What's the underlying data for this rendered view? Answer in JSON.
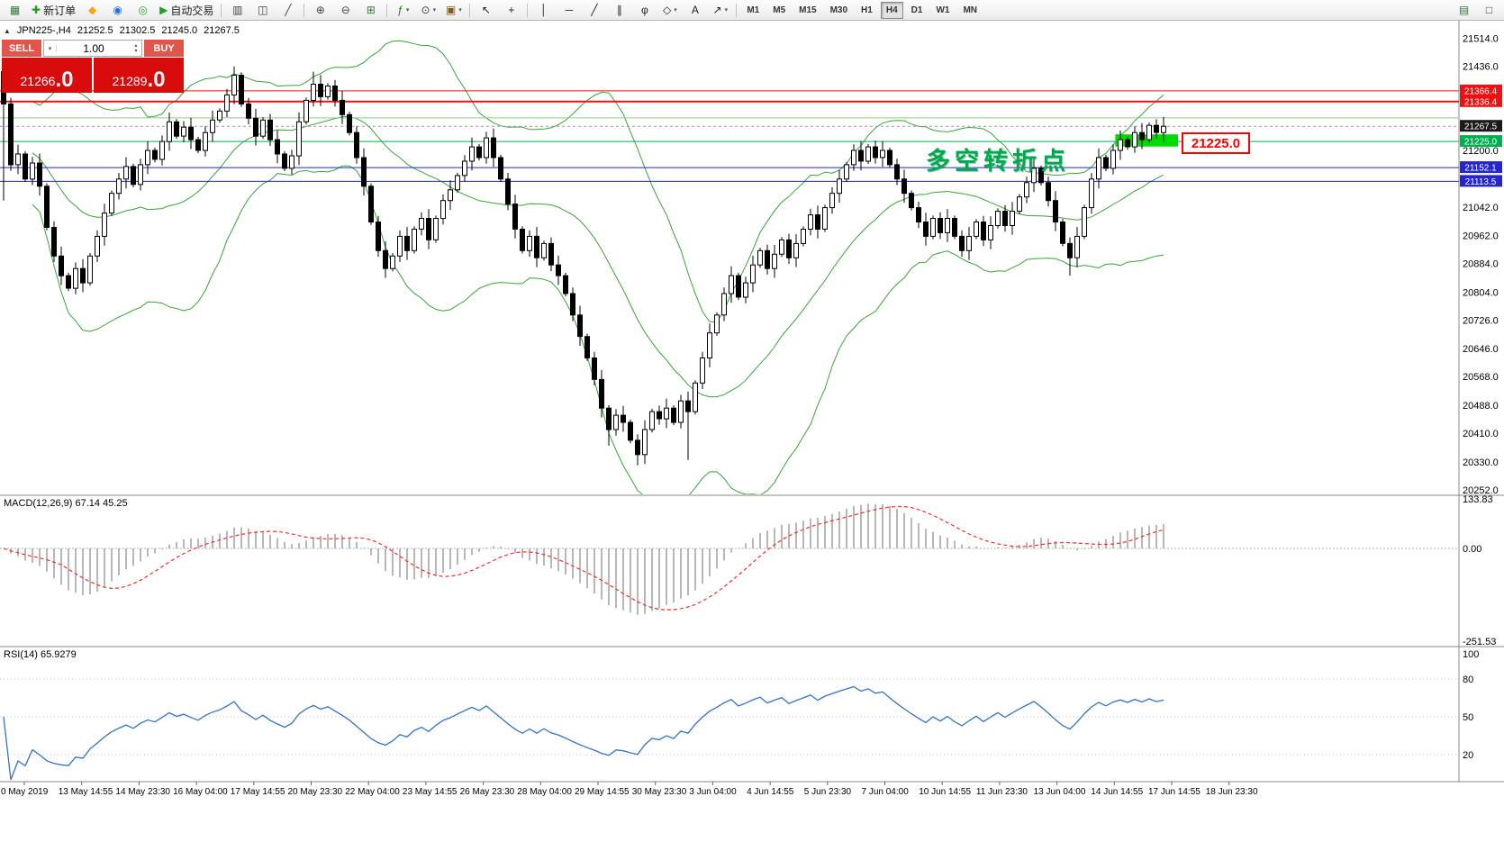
{
  "icons": {
    "caret_down": "▾",
    "caret_up": "▴",
    "collapse": "▲"
  },
  "toolbar": {
    "items": [
      {
        "name": "chart-window-button",
        "icon": "chart-window-icon",
        "glyph": "▦",
        "color": "#2e7d32"
      },
      {
        "name": "new-order-button",
        "icon": "new-order-icon",
        "glyph": "✚",
        "color": "#1f9d1f",
        "label": "新订单"
      },
      {
        "name": "mql5-button",
        "icon": "mql5-icon",
        "glyph": "◆",
        "color": "#f2a71b"
      },
      {
        "name": "market-button",
        "icon": "market-icon",
        "glyph": "◉",
        "color": "#2f6fd0"
      },
      {
        "name": "signals-button",
        "icon": "signals-icon",
        "glyph": "◎",
        "color": "#31a331"
      },
      {
        "name": "autotrading-button",
        "icon": "autotrading-icon",
        "glyph": "▶",
        "color": "#17a817",
        "label": "自动交易"
      },
      {
        "sep": true
      },
      {
        "name": "bar-chart-button",
        "icon": "bar-chart-icon",
        "glyph": "▥",
        "color": "#444444"
      },
      {
        "name": "candlestick-button",
        "icon": "candlestick-icon",
        "glyph": "◫",
        "color": "#444444"
      },
      {
        "name": "line-chart-button",
        "icon": "line-chart-icon",
        "glyph": "╱",
        "color": "#444444"
      },
      {
        "sep": true
      },
      {
        "name": "zoom-in-button",
        "icon": "zoom-in-icon",
        "glyph": "⊕",
        "color": "#444444"
      },
      {
        "name": "zoom-out-button",
        "icon": "zoom-out-icon",
        "glyph": "⊖",
        "color": "#444444"
      },
      {
        "name": "tile-windows-button",
        "icon": "tile-windows-icon",
        "glyph": "⊞",
        "color": "#2e7d32"
      },
      {
        "sep": true
      },
      {
        "name": "indicators-button",
        "icon": "indicators-icon",
        "glyph": "ƒ",
        "color": "#1f7d1f",
        "caret": true
      },
      {
        "name": "periods-button",
        "icon": "periods-icon",
        "glyph": "⊙",
        "color": "#444444",
        "caret": true
      },
      {
        "name": "templates-button",
        "icon": "templates-icon",
        "glyph": "▣",
        "color": "#7d5a1f",
        "caret": true
      },
      {
        "sep": true
      },
      {
        "name": "cursor-button",
        "icon": "cursor-icon",
        "glyph": "↖",
        "color": "#222222"
      },
      {
        "name": "crosshair-button",
        "icon": "crosshair-icon",
        "glyph": "+",
        "color": "#222222"
      },
      {
        "sep": true
      },
      {
        "name": "vertical-line-button",
        "icon": "vertical-line-icon",
        "glyph": "│",
        "color": "#222222"
      },
      {
        "name": "horizontal-line-button",
        "icon": "horizontal-line-icon",
        "glyph": "─",
        "color": "#222222"
      },
      {
        "name": "trendline-button",
        "icon": "trendline-icon",
        "glyph": "╱",
        "color": "#222222"
      },
      {
        "name": "channel-button",
        "icon": "channel-icon",
        "glyph": "∥",
        "color": "#222222"
      },
      {
        "name": "fibonacci-button",
        "icon": "fibonacci-icon",
        "glyph": "φ",
        "color": "#222222"
      },
      {
        "name": "shapes-button",
        "icon": "shapes-icon",
        "glyph": "◇",
        "color": "#222222",
        "caret": true
      },
      {
        "name": "text-button",
        "icon": "text-icon",
        "glyph": "A",
        "color": "#222222"
      },
      {
        "name": "arrows-button",
        "icon": "arrows-icon",
        "glyph": "↗",
        "color": "#222222",
        "caret": true
      },
      {
        "sep": true
      },
      {
        "timeframes": true
      },
      {
        "spacer": true
      },
      {
        "name": "chart-list-button",
        "icon": "chart-list-icon",
        "glyph": "▤",
        "color": "#2e7d32"
      },
      {
        "name": "window-mode-button",
        "icon": "window-mode-icon",
        "glyph": "□",
        "color": "#444444"
      }
    ],
    "timeframes": [
      "M1",
      "M5",
      "M15",
      "M30",
      "H1",
      "H4",
      "D1",
      "W1",
      "MN"
    ],
    "active_timeframe": "H4"
  },
  "chart_header": {
    "symbol": "JPN225-,H4",
    "open": "21252.5",
    "high": "21302.5",
    "low": "21245.0",
    "close": "21267.5"
  },
  "trade_panel": {
    "sell_label": "SELL",
    "buy_label": "BUY",
    "volume": "1.00",
    "sell_price_main": "21266",
    "sell_price_pips": ".0",
    "buy_price_main": "21289",
    "buy_price_pips": ".0"
  },
  "indicator_labels": {
    "macd": "MACD(12,26,9) 67.14 45.25",
    "rsi": "RSI(14) 65.9279"
  },
  "annotations": {
    "turning_point_text": "多空转折点",
    "price_tag": "21225.0"
  },
  "chart_data": {
    "type": "candlestick",
    "symbol": "JPN225-",
    "timeframe": "H4",
    "ohlc_display": {
      "open": 21252.5,
      "high": 21302.5,
      "low": 21245.0,
      "close": 21267.5
    },
    "price_axis_labels": [
      21514.0,
      21436.0,
      21200.0,
      21042.0,
      20962.0,
      20884.0,
      20804.0,
      20726.0,
      20646.0,
      20568.0,
      20488.0,
      20410.0,
      20330.0,
      20252.0
    ],
    "current_price": {
      "value": 21267.5,
      "label": "21267.5",
      "tag_color": "#1a1a1a"
    },
    "hlines": [
      {
        "price": 21366.4,
        "label": "21366.4",
        "color": "#ee1111",
        "width": 1
      },
      {
        "price": 21336.4,
        "label": "21336.4",
        "color": "#ee1111",
        "width": 2
      },
      {
        "price": 21291.0,
        "label": null,
        "color": "#8fcf8f",
        "width": 1
      },
      {
        "price": 21225.0,
        "label": "21225.0",
        "color": "#00b050",
        "width": 1
      },
      {
        "price": 21152.1,
        "label": "21152.1",
        "color": "#2525cd",
        "width": 1
      },
      {
        "price": 21113.5,
        "label": "21113.5",
        "color": "#2525cd",
        "width": 1
      }
    ],
    "zone": {
      "left_index": 154.3,
      "right_index": 163,
      "top_price": 21245,
      "bottom_price": 21211,
      "color": "#00dc00"
    },
    "candles": {
      "first_open": 21420,
      "closes": [
        21330,
        21160,
        21190,
        21120,
        21165,
        21100,
        20985,
        20905,
        20850,
        20815,
        20870,
        20830,
        20905,
        20960,
        21025,
        21080,
        21120,
        21155,
        21105,
        21160,
        21200,
        21175,
        21225,
        21280,
        21240,
        21265,
        21230,
        21200,
        21250,
        21285,
        21310,
        21355,
        21410,
        21330,
        21290,
        21240,
        21285,
        21230,
        21190,
        21150,
        21185,
        21280,
        21340,
        21385,
        21350,
        21380,
        21340,
        21300,
        21250,
        21180,
        21100,
        21000,
        20920,
        20870,
        20905,
        20960,
        20920,
        20980,
        21010,
        20950,
        21010,
        21060,
        21090,
        21130,
        21170,
        21210,
        21180,
        21235,
        21180,
        21120,
        21050,
        20980,
        20920,
        20960,
        20900,
        20940,
        20880,
        20850,
        20800,
        20740,
        20680,
        20620,
        20560,
        20480,
        20420,
        20460,
        20440,
        20390,
        20350,
        20420,
        20470,
        20450,
        20480,
        20440,
        20500,
        20470,
        20550,
        20620,
        20690,
        20740,
        20800,
        20850,
        20790,
        20830,
        20880,
        20920,
        20870,
        20910,
        20950,
        20900,
        20940,
        20980,
        21020,
        20980,
        21040,
        21080,
        21120,
        21160,
        21200,
        21170,
        21210,
        21180,
        21200,
        21160,
        21120,
        21080,
        21040,
        21000,
        20960,
        21010,
        20970,
        21010,
        20960,
        20920,
        20960,
        21000,
        20950,
        20990,
        21030,
        20990,
        21030,
        21070,
        21110,
        21150,
        21110,
        21060,
        21000,
        20940,
        20900,
        20960,
        21040,
        21120,
        21180,
        21150,
        21200,
        21230,
        21210,
        21250,
        21230,
        21270,
        21250,
        21267.5
      ],
      "special_wicks": [
        {
          "i": 0,
          "low": 21060,
          "high": 21440
        },
        {
          "i": 32,
          "high": 21435
        },
        {
          "i": 43,
          "high": 21420
        },
        {
          "i": 84,
          "low": 20375
        },
        {
          "i": 88,
          "low": 20320
        },
        {
          "i": 95,
          "low": 20335
        },
        {
          "i": 148,
          "low": 20850
        }
      ]
    },
    "indicators": {
      "bollinger": {
        "period": 20,
        "deviation": 2,
        "color": "#3aa33a"
      },
      "macd": {
        "fast": 12,
        "slow": 26,
        "signal": 9,
        "value": 67.14,
        "signal_value": 45.25,
        "scale_labels": [
          {
            "value": 133.83,
            "text": "133.83"
          },
          {
            "value": 0,
            "text": "0.00"
          },
          {
            "value": -251.53,
            "text": "-251.53"
          }
        ],
        "histogram_color": "#b8b8b8",
        "signal_color": "#ff2a2a"
      },
      "rsi": {
        "period": 14,
        "value": 65.9279,
        "levels": [
          80,
          50,
          20
        ],
        "scale_labels": [
          {
            "value": 100,
            "text": "100"
          },
          {
            "value": 80,
            "text": "80"
          },
          {
            "value": 50,
            "text": "50"
          },
          {
            "value": 20,
            "text": "20"
          }
        ],
        "color": "#3572c6"
      }
    },
    "time_axis_labels": [
      "0 May 2019",
      "13 May 14:55",
      "14 May 23:30",
      "16 May 04:00",
      "17 May 14:55",
      "20 May 23:30",
      "22 May 04:00",
      "23 May 14:55",
      "26 May 23:30",
      "28 May 04:00",
      "29 May 14:55",
      "30 May 23:30",
      "3 Jun 04:00",
      "4 Jun 14:55",
      "5 Jun 23:30",
      "7 Jun 04:00",
      "10 Jun 14:55",
      "11 Jun 23:30",
      "13 Jun 04:00",
      "14 Jun 14:55",
      "17 Jun 14:55",
      "18 Jun 23:30"
    ]
  }
}
